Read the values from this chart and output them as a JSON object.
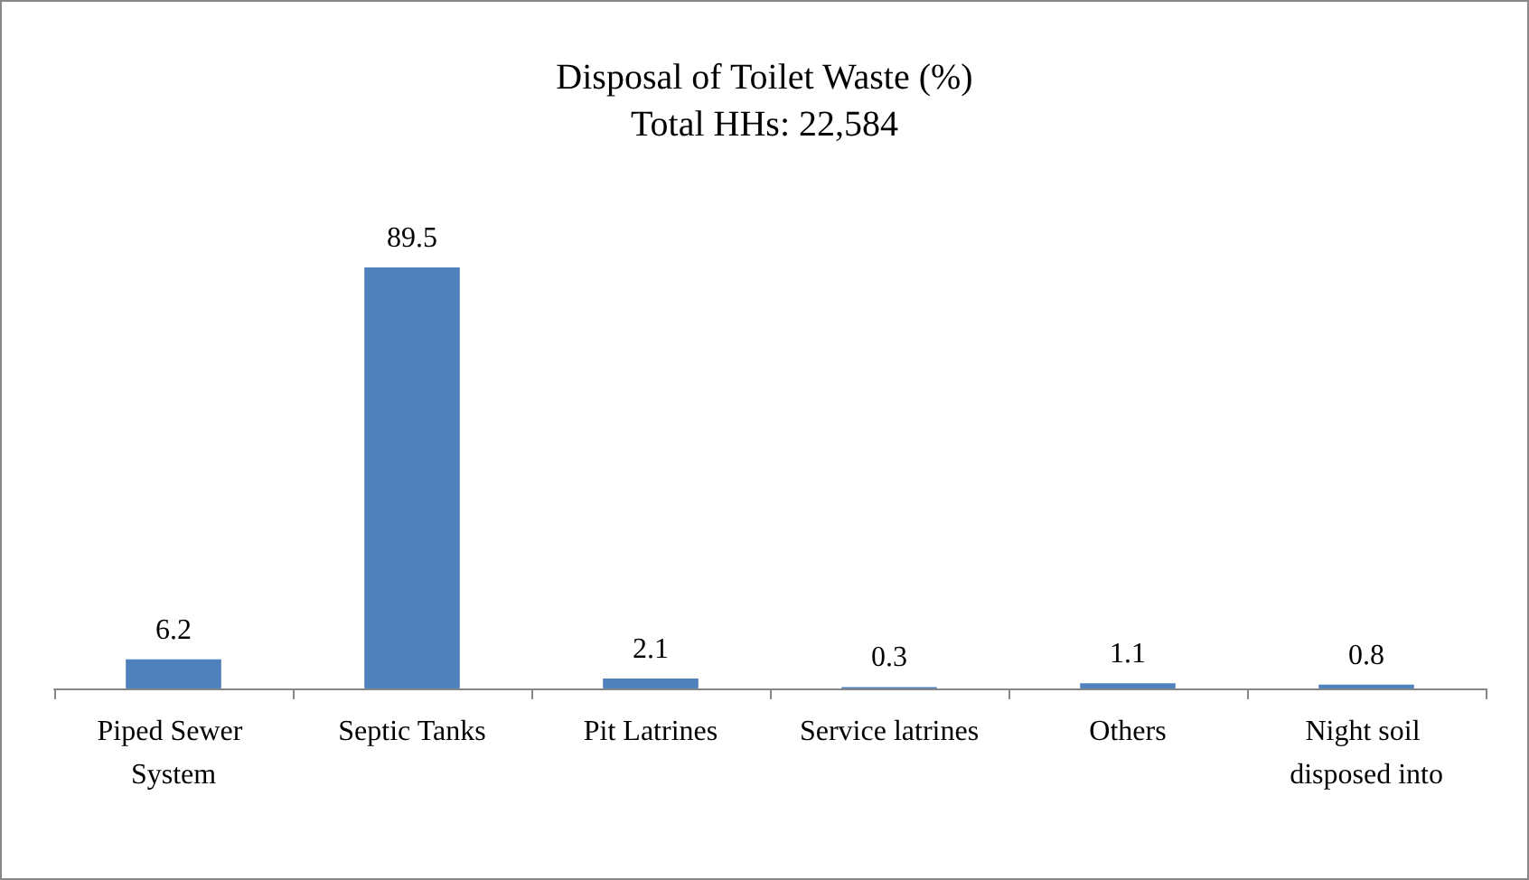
{
  "chart_data": {
    "type": "bar",
    "title": "Disposal of Toilet Waste (%)",
    "subtitle": "Total HHs: 22,584",
    "categories": [
      "Piped Sewer System",
      "Septic Tanks",
      "Pit Latrines",
      "Service latrines",
      "Others",
      "Night soil disposed into"
    ],
    "values": [
      6.2,
      89.5,
      2.1,
      0.3,
      1.1,
      0.8
    ],
    "color": "#4f81bd",
    "data_labels": true
  }
}
